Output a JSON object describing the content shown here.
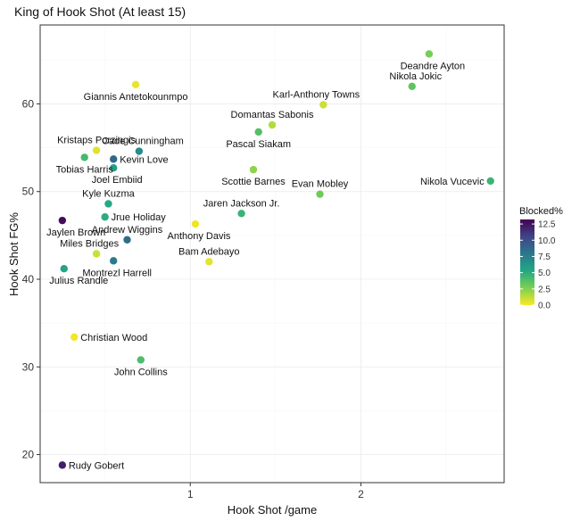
{
  "chart_data": {
    "type": "scatter",
    "title": "King of Hook Shot (At least 15)",
    "xlabel": "Hook Shot /game",
    "ylabel": "Hook Shot FG%",
    "xlim": [
      0.12,
      2.84
    ],
    "ylim": [
      16.8,
      69.0
    ],
    "xticks": [
      1,
      2
    ],
    "yticks": [
      20,
      30,
      40,
      50,
      60
    ],
    "color_scale": {
      "title": "Blocked%",
      "min": 0.0,
      "max": 13.2,
      "ticks": [
        0.0,
        2.5,
        5.0,
        7.5,
        10.0,
        12.5
      ],
      "tick_labels": [
        "0.0",
        "2.5",
        "5.0",
        "7.5",
        "10.0",
        "12.5"
      ],
      "colors": [
        "#fde725",
        "#7ad151",
        "#22a884",
        "#2a788e",
        "#414487",
        "#440154"
      ]
    },
    "legend_position": "right",
    "points": [
      {
        "name": "Deandre Ayton",
        "x": 2.4,
        "y": 65.7,
        "blocked": 2.8,
        "label_side": "below-right"
      },
      {
        "name": "Nikola Jokic",
        "x": 2.3,
        "y": 62.0,
        "blocked": 3.5,
        "label_side": "above-right"
      },
      {
        "name": "Giannis Antetokounmpo",
        "x": 0.68,
        "y": 62.2,
        "blocked": 0.4,
        "label_side": "below"
      },
      {
        "name": "Karl-Anthony Towns",
        "x": 1.78,
        "y": 59.9,
        "blocked": 1.0,
        "label_side": "above-left"
      },
      {
        "name": "Domantas Sabonis",
        "x": 1.48,
        "y": 57.6,
        "blocked": 1.5,
        "label_side": "above"
      },
      {
        "name": "Pascal Siakam",
        "x": 1.4,
        "y": 56.8,
        "blocked": 3.8,
        "label_side": "below"
      },
      {
        "name": "Kristaps Porzingis",
        "x": 0.45,
        "y": 54.7,
        "blocked": 0.6,
        "label_side": "above"
      },
      {
        "name": "Cade Cunningham",
        "x": 0.7,
        "y": 54.6,
        "blocked": 6.8,
        "label_side": "above-right"
      },
      {
        "name": "Tobias Harris",
        "x": 0.38,
        "y": 53.9,
        "blocked": 4.2,
        "label_side": "below"
      },
      {
        "name": "Kevin Love",
        "x": 0.55,
        "y": 53.7,
        "blocked": 8.8,
        "label_side": "right"
      },
      {
        "name": "Joel Embiid",
        "x": 0.55,
        "y": 52.7,
        "blocked": 5.8,
        "label_side": "below-right"
      },
      {
        "name": "Scottie Barnes",
        "x": 1.37,
        "y": 52.5,
        "blocked": 2.3,
        "label_side": "below"
      },
      {
        "name": "Evan Mobley",
        "x": 1.76,
        "y": 49.7,
        "blocked": 3.0,
        "label_side": "above"
      },
      {
        "name": "Nikola Vucevic",
        "x": 2.76,
        "y": 51.2,
        "blocked": 4.5,
        "label_side": "left"
      },
      {
        "name": "Kyle Kuzma",
        "x": 0.52,
        "y": 48.6,
        "blocked": 5.2,
        "label_side": "above"
      },
      {
        "name": "Jrue Holiday",
        "x": 0.5,
        "y": 47.1,
        "blocked": 5.0,
        "label_side": "right"
      },
      {
        "name": "Jaren Jackson Jr.",
        "x": 1.3,
        "y": 47.5,
        "blocked": 4.6,
        "label_side": "above"
      },
      {
        "name": "Jaylen Brown",
        "x": 0.25,
        "y": 46.7,
        "blocked": 12.8,
        "label_side": "below"
      },
      {
        "name": "Anthony Davis",
        "x": 1.03,
        "y": 46.3,
        "blocked": 0.3,
        "label_side": "below-right"
      },
      {
        "name": "Andrew Wiggins",
        "x": 0.63,
        "y": 44.5,
        "blocked": 8.5,
        "label_side": "above"
      },
      {
        "name": "Miles Bridges",
        "x": 0.45,
        "y": 42.9,
        "blocked": 1.0,
        "label_side": "above-left"
      },
      {
        "name": "Bam Adebayo",
        "x": 1.11,
        "y": 42.0,
        "blocked": 0.5,
        "label_side": "above"
      },
      {
        "name": "Montrezl Harrell",
        "x": 0.55,
        "y": 42.1,
        "blocked": 7.8,
        "label_side": "below-right"
      },
      {
        "name": "Julius Randle",
        "x": 0.26,
        "y": 41.2,
        "blocked": 5.5,
        "label_side": "below"
      },
      {
        "name": "Christian Wood",
        "x": 0.32,
        "y": 33.4,
        "blocked": 0.2,
        "label_side": "right"
      },
      {
        "name": "John Collins",
        "x": 0.71,
        "y": 30.8,
        "blocked": 4.0,
        "label_side": "below"
      },
      {
        "name": "Rudy Gobert",
        "x": 0.25,
        "y": 18.8,
        "blocked": 12.0,
        "label_side": "right"
      }
    ]
  }
}
